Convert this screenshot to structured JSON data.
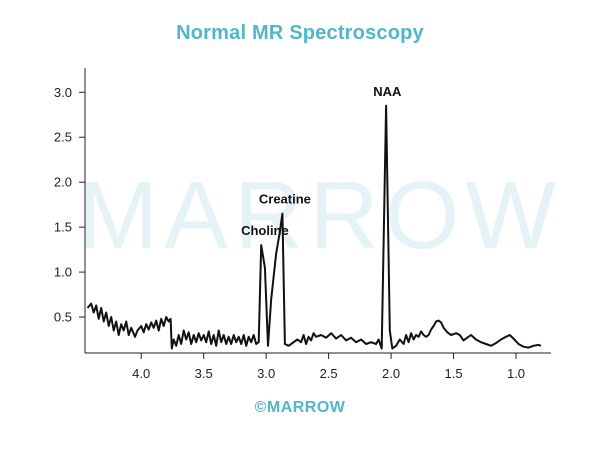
{
  "chart_data": {
    "type": "line",
    "title": "Normal MR Spectroscopy",
    "xlabel": "",
    "ylabel": "",
    "xlim": [
      4.45,
      0.72
    ],
    "ylim": [
      0.1,
      3.27
    ],
    "x_reversed": true,
    "grid": false,
    "xticks": [
      "4.0",
      "3.5",
      "3.0",
      "2.5",
      "2.0",
      "1.5",
      "1.0"
    ],
    "yticks": [
      "0.5",
      "1.0",
      "1.5",
      "2.0",
      "2.5",
      "3.0"
    ],
    "annotations": [
      {
        "text": "Choline",
        "x": 3.01,
        "y": 1.3
      },
      {
        "text": "Creatine",
        "x": 2.85,
        "y": 1.65
      },
      {
        "text": "NAA",
        "x": 2.03,
        "y": 2.85
      }
    ],
    "series": [
      {
        "color": "#111111",
        "points": [
          [
            4.43,
            0.6
          ],
          [
            4.4,
            0.65
          ],
          [
            4.38,
            0.55
          ],
          [
            4.36,
            0.63
          ],
          [
            4.34,
            0.48
          ],
          [
            4.32,
            0.6
          ],
          [
            4.3,
            0.45
          ],
          [
            4.28,
            0.55
          ],
          [
            4.26,
            0.4
          ],
          [
            4.24,
            0.5
          ],
          [
            4.22,
            0.35
          ],
          [
            4.2,
            0.45
          ],
          [
            4.18,
            0.3
          ],
          [
            4.16,
            0.42
          ],
          [
            4.14,
            0.35
          ],
          [
            4.12,
            0.45
          ],
          [
            4.1,
            0.3
          ],
          [
            4.08,
            0.38
          ],
          [
            4.05,
            0.28
          ],
          [
            4.03,
            0.35
          ],
          [
            4.0,
            0.4
          ],
          [
            3.98,
            0.33
          ],
          [
            3.96,
            0.42
          ],
          [
            3.94,
            0.36
          ],
          [
            3.92,
            0.44
          ],
          [
            3.9,
            0.38
          ],
          [
            3.88,
            0.46
          ],
          [
            3.86,
            0.35
          ],
          [
            3.84,
            0.48
          ],
          [
            3.82,
            0.4
          ],
          [
            3.8,
            0.5
          ],
          [
            3.78,
            0.45
          ],
          [
            3.765,
            0.48
          ],
          [
            3.755,
            0.15
          ],
          [
            3.74,
            0.25
          ],
          [
            3.72,
            0.18
          ],
          [
            3.7,
            0.3
          ],
          [
            3.68,
            0.2
          ],
          [
            3.66,
            0.35
          ],
          [
            3.64,
            0.25
          ],
          [
            3.62,
            0.33
          ],
          [
            3.6,
            0.2
          ],
          [
            3.58,
            0.3
          ],
          [
            3.56,
            0.22
          ],
          [
            3.54,
            0.32
          ],
          [
            3.52,
            0.24
          ],
          [
            3.5,
            0.3
          ],
          [
            3.48,
            0.22
          ],
          [
            3.46,
            0.34
          ],
          [
            3.44,
            0.2
          ],
          [
            3.42,
            0.3
          ],
          [
            3.4,
            0.18
          ],
          [
            3.38,
            0.35
          ],
          [
            3.36,
            0.22
          ],
          [
            3.34,
            0.3
          ],
          [
            3.32,
            0.2
          ],
          [
            3.3,
            0.28
          ],
          [
            3.28,
            0.2
          ],
          [
            3.26,
            0.3
          ],
          [
            3.24,
            0.22
          ],
          [
            3.22,
            0.28
          ],
          [
            3.2,
            0.2
          ],
          [
            3.18,
            0.3
          ],
          [
            3.16,
            0.18
          ],
          [
            3.14,
            0.28
          ],
          [
            3.12,
            0.22
          ],
          [
            3.1,
            0.3
          ],
          [
            3.08,
            0.2
          ],
          [
            3.06,
            0.22
          ],
          [
            3.04,
            1.3
          ],
          [
            3.01,
            1.05
          ],
          [
            2.985,
            0.18
          ],
          [
            2.96,
            0.7
          ],
          [
            2.92,
            1.2
          ],
          [
            2.89,
            1.45
          ],
          [
            2.87,
            1.65
          ],
          [
            2.85,
            0.2
          ],
          [
            2.82,
            0.18
          ],
          [
            2.78,
            0.22
          ],
          [
            2.75,
            0.25
          ],
          [
            2.72,
            0.22
          ],
          [
            2.7,
            0.3
          ],
          [
            2.68,
            0.2
          ],
          [
            2.66,
            0.28
          ],
          [
            2.64,
            0.24
          ],
          [
            2.62,
            0.32
          ],
          [
            2.6,
            0.28
          ],
          [
            2.56,
            0.3
          ],
          [
            2.52,
            0.27
          ],
          [
            2.48,
            0.32
          ],
          [
            2.44,
            0.26
          ],
          [
            2.4,
            0.3
          ],
          [
            2.36,
            0.24
          ],
          [
            2.32,
            0.27
          ],
          [
            2.28,
            0.22
          ],
          [
            2.24,
            0.25
          ],
          [
            2.2,
            0.2
          ],
          [
            2.16,
            0.22
          ],
          [
            2.12,
            0.2
          ],
          [
            2.1,
            0.25
          ],
          [
            2.075,
            0.15
          ],
          [
            2.04,
            2.85
          ],
          [
            2.01,
            0.35
          ],
          [
            1.99,
            0.15
          ],
          [
            1.96,
            0.18
          ],
          [
            1.93,
            0.25
          ],
          [
            1.9,
            0.2
          ],
          [
            1.88,
            0.3
          ],
          [
            1.86,
            0.22
          ],
          [
            1.84,
            0.32
          ],
          [
            1.82,
            0.25
          ],
          [
            1.8,
            0.3
          ],
          [
            1.78,
            0.28
          ],
          [
            1.76,
            0.34
          ],
          [
            1.74,
            0.3
          ],
          [
            1.72,
            0.28
          ],
          [
            1.7,
            0.3
          ],
          [
            1.68,
            0.36
          ],
          [
            1.66,
            0.4
          ],
          [
            1.64,
            0.45
          ],
          [
            1.62,
            0.46
          ],
          [
            1.6,
            0.44
          ],
          [
            1.58,
            0.38
          ],
          [
            1.55,
            0.33
          ],
          [
            1.52,
            0.3
          ],
          [
            1.48,
            0.32
          ],
          [
            1.45,
            0.3
          ],
          [
            1.42,
            0.24
          ],
          [
            1.4,
            0.26
          ],
          [
            1.36,
            0.3
          ],
          [
            1.32,
            0.25
          ],
          [
            1.28,
            0.22
          ],
          [
            1.24,
            0.2
          ],
          [
            1.2,
            0.18
          ],
          [
            1.16,
            0.21
          ],
          [
            1.12,
            0.25
          ],
          [
            1.08,
            0.28
          ],
          [
            1.05,
            0.3
          ],
          [
            1.02,
            0.26
          ],
          [
            0.98,
            0.2
          ],
          [
            0.94,
            0.17
          ],
          [
            0.9,
            0.16
          ],
          [
            0.86,
            0.18
          ],
          [
            0.82,
            0.19
          ],
          [
            0.8,
            0.18
          ]
        ]
      }
    ]
  },
  "watermark": {
    "text": "MARROW"
  },
  "footer": {
    "logo_text": "©MARROW"
  }
}
